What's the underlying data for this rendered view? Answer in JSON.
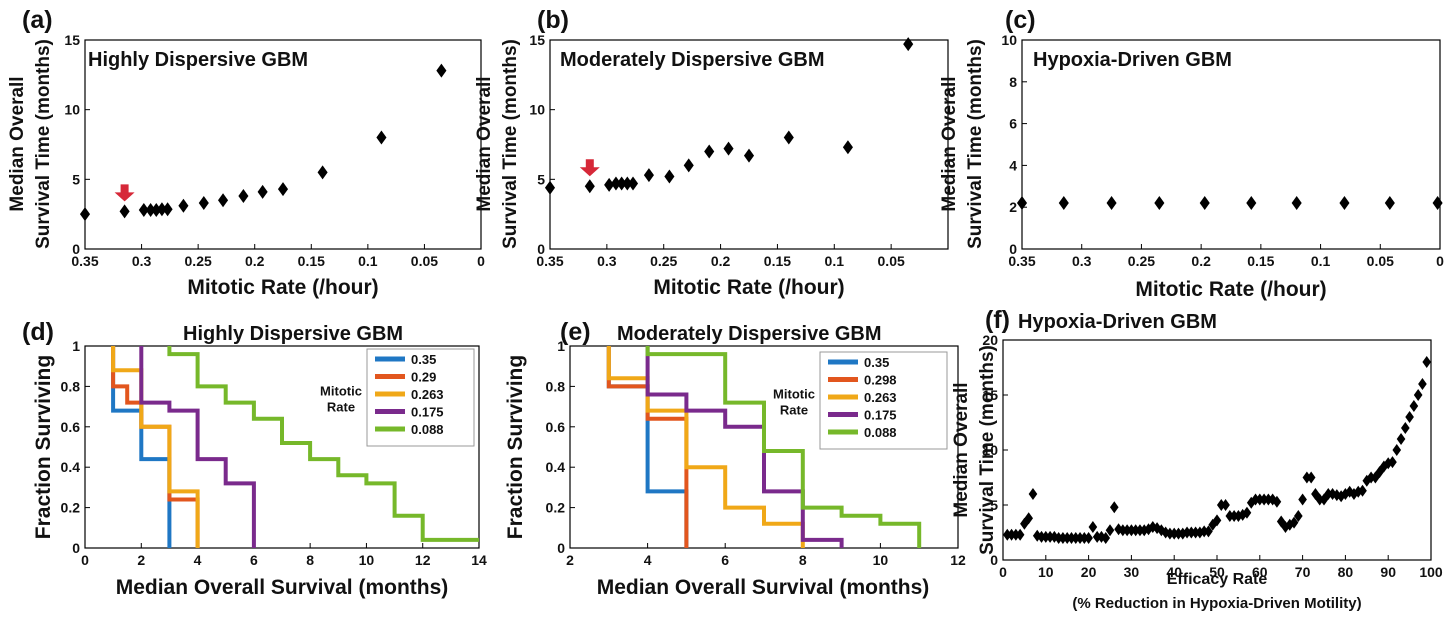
{
  "chart_data": [
    {
      "id": "a",
      "type": "scatter",
      "panel_label": "(a)",
      "title": "Highly Dispersive GBM",
      "xlabel": "Mitotic Rate (/hour)",
      "ylabel": [
        "Median Overall",
        "Survival Time (months)"
      ],
      "xlim": [
        0.35,
        0
      ],
      "ylim": [
        0,
        15
      ],
      "x_ticks": [
        0.35,
        0.3,
        0.25,
        0.2,
        0.15,
        0.1,
        0.05,
        0
      ],
      "y_ticks": [
        0,
        5,
        10,
        15
      ],
      "x_tick_labels": [
        "0.35",
        "0.3",
        "0.25",
        "0.2",
        "0.15",
        "0.1",
        "0.05",
        "0"
      ],
      "y_tick_labels": [
        "0",
        "5",
        "10",
        "15"
      ],
      "marker": "diamond",
      "marker_color": "#000000",
      "x": [
        0.35,
        0.315,
        0.298,
        0.292,
        0.287,
        0.282,
        0.277,
        0.263,
        0.245,
        0.228,
        0.21,
        0.193,
        0.175,
        0.14,
        0.088,
        0.035
      ],
      "y": [
        2.5,
        2.7,
        2.8,
        2.8,
        2.8,
        2.85,
        2.85,
        3.1,
        3.3,
        3.5,
        3.8,
        4.1,
        4.3,
        5.5,
        8.0,
        12.8
      ],
      "annotation": {
        "type": "arrow",
        "x": 0.315,
        "y": 2.7,
        "color": "#d62838"
      },
      "grid": false
    },
    {
      "id": "b",
      "type": "scatter",
      "panel_label": "(b)",
      "title": "Moderately Dispersive GBM",
      "xlabel": "Mitotic Rate (/hour)",
      "ylabel": [
        "Median Overall",
        "Survival Time (months)"
      ],
      "xlim": [
        0.35,
        0
      ],
      "ylim": [
        0,
        15
      ],
      "x_ticks": [
        0.35,
        0.3,
        0.25,
        0.2,
        0.15,
        0.1,
        0.05
      ],
      "y_ticks": [
        0,
        5,
        10,
        15
      ],
      "x_tick_labels": [
        "0.35",
        "0.3",
        "0.25",
        "0.2",
        "0.15",
        "0.1",
        "0.05"
      ],
      "y_tick_labels": [
        "0",
        "5",
        "10",
        "15"
      ],
      "marker": "diamond",
      "marker_color": "#000000",
      "x": [
        0.35,
        0.315,
        0.298,
        0.292,
        0.287,
        0.282,
        0.277,
        0.263,
        0.245,
        0.228,
        0.21,
        0.193,
        0.175,
        0.14,
        0.088,
        0.035
      ],
      "y": [
        4.4,
        4.5,
        4.6,
        4.7,
        4.7,
        4.7,
        4.7,
        5.3,
        5.2,
        6.0,
        7.0,
        7.2,
        6.7,
        8.0,
        7.3,
        14.7
      ],
      "annotation": {
        "type": "arrow",
        "x": 0.315,
        "y": 4.5,
        "color": "#d62838"
      },
      "grid": false
    },
    {
      "id": "c",
      "type": "scatter",
      "panel_label": "(c)",
      "title": "Hypoxia-Driven GBM",
      "xlabel": "Mitotic Rate (/hour)",
      "ylabel": [
        "Median Overall",
        "Survival Time (months)"
      ],
      "xlim": [
        0.35,
        0
      ],
      "ylim": [
        0,
        10
      ],
      "x_ticks": [
        0.35,
        0.3,
        0.25,
        0.2,
        0.15,
        0.1,
        0.05,
        0
      ],
      "y_ticks": [
        0,
        2,
        4,
        6,
        8,
        10
      ],
      "x_tick_labels": [
        "0.35",
        "0.3",
        "0.25",
        "0.2",
        "0.15",
        "0.1",
        "0.05",
        "0"
      ],
      "y_tick_labels": [
        "0",
        "2",
        "4",
        "6",
        "8",
        "10"
      ],
      "marker": "diamond",
      "marker_color": "#000000",
      "x": [
        0.35,
        0.315,
        0.275,
        0.235,
        0.197,
        0.158,
        0.12,
        0.08,
        0.042,
        0.002
      ],
      "y": [
        2.2,
        2.2,
        2.2,
        2.2,
        2.2,
        2.2,
        2.2,
        2.2,
        2.2,
        2.2
      ],
      "grid": false
    },
    {
      "id": "d",
      "type": "line",
      "subtype": "step",
      "panel_label": "(d)",
      "title": "Highly Dispersive GBM",
      "xlabel": "Median Overall Survival (months)",
      "ylabel": "Fraction Surviving",
      "xlim": [
        0,
        14
      ],
      "ylim": [
        0,
        1
      ],
      "x_ticks": [
        0,
        2,
        4,
        6,
        8,
        10,
        12,
        14
      ],
      "y_ticks": [
        0,
        0.2,
        0.4,
        0.6,
        0.8,
        1
      ],
      "x_tick_labels": [
        "0",
        "2",
        "4",
        "6",
        "8",
        "10",
        "12",
        "14"
      ],
      "y_tick_labels": [
        "0",
        "0.2",
        "0.4",
        "0.6",
        "0.8",
        "1"
      ],
      "legend": {
        "title": [
          "Mitotic",
          "Rate"
        ],
        "placement": "top-right"
      },
      "series": [
        {
          "name": "0.35",
          "color": "#1f77c4",
          "x": [
            1,
            1,
            2,
            2,
            3,
            3
          ],
          "y": [
            1,
            0.68,
            0.68,
            0.44,
            0.44,
            0
          ]
        },
        {
          "name": "0.29",
          "color": "#e2561e",
          "x": [
            1,
            1,
            1.5,
            1.5,
            2,
            2,
            3,
            3,
            4,
            4
          ],
          "y": [
            1,
            0.8,
            0.8,
            0.72,
            0.72,
            0.6,
            0.6,
            0.24,
            0.24,
            0
          ]
        },
        {
          "name": "0.263",
          "color": "#f0a818",
          "x": [
            1,
            1,
            2,
            2,
            3,
            3,
            4,
            4
          ],
          "y": [
            1,
            0.88,
            0.88,
            0.6,
            0.6,
            0.28,
            0.28,
            0
          ]
        },
        {
          "name": "0.175",
          "color": "#7a2a8c",
          "x": [
            2,
            2,
            3,
            3,
            4,
            4,
            5,
            5,
            6,
            6
          ],
          "y": [
            1,
            0.72,
            0.72,
            0.68,
            0.68,
            0.44,
            0.44,
            0.32,
            0.32,
            0
          ]
        },
        {
          "name": "0.088",
          "color": "#76b82a",
          "x": [
            3,
            3,
            4,
            4,
            5,
            5,
            6,
            6,
            7,
            7,
            8,
            8,
            9,
            9,
            10,
            10,
            11,
            11,
            12,
            12,
            14
          ],
          "y": [
            1,
            0.96,
            0.96,
            0.8,
            0.8,
            0.72,
            0.72,
            0.64,
            0.64,
            0.52,
            0.52,
            0.44,
            0.44,
            0.36,
            0.36,
            0.32,
            0.32,
            0.16,
            0.16,
            0.04,
            0.04
          ]
        }
      ]
    },
    {
      "id": "e",
      "type": "line",
      "subtype": "step",
      "panel_label": "(e)",
      "title": "Moderately Dispersive GBM",
      "xlabel": "Median Overall Survival (months)",
      "ylabel": "Fraction Surviving",
      "xlim": [
        2,
        12
      ],
      "ylim": [
        0,
        1
      ],
      "x_ticks": [
        2,
        4,
        6,
        8,
        10,
        12
      ],
      "y_ticks": [
        0,
        0.2,
        0.4,
        0.6,
        0.8,
        1
      ],
      "x_tick_labels": [
        "2",
        "4",
        "6",
        "8",
        "10",
        "12"
      ],
      "y_tick_labels": [
        "0",
        "0.2",
        "0.4",
        "0.6",
        "0.8",
        "1"
      ],
      "legend": {
        "title": [
          "Mitotic",
          "Rate"
        ],
        "placement": "top-right"
      },
      "series": [
        {
          "name": "0.35",
          "color": "#1f77c4",
          "x": [
            3,
            3,
            4,
            4,
            5,
            5
          ],
          "y": [
            1,
            0.8,
            0.8,
            0.28,
            0.28,
            0
          ]
        },
        {
          "name": "0.298",
          "color": "#e2561e",
          "x": [
            3,
            3,
            4,
            4,
            5,
            5
          ],
          "y": [
            1,
            0.8,
            0.8,
            0.64,
            0.64,
            0
          ]
        },
        {
          "name": "0.263",
          "color": "#f0a818",
          "x": [
            3,
            3,
            4,
            4,
            5,
            5,
            6,
            6,
            7,
            7,
            8,
            8
          ],
          "y": [
            1,
            0.84,
            0.84,
            0.68,
            0.68,
            0.4,
            0.4,
            0.2,
            0.2,
            0.12,
            0.12,
            0
          ]
        },
        {
          "name": "0.175",
          "color": "#7a2a8c",
          "x": [
            4,
            4,
            5,
            5,
            6,
            6,
            7,
            7,
            8,
            8,
            9,
            9
          ],
          "y": [
            1,
            0.76,
            0.76,
            0.68,
            0.68,
            0.6,
            0.6,
            0.28,
            0.28,
            0.04,
            0.04,
            0
          ]
        },
        {
          "name": "0.088",
          "color": "#76b82a",
          "x": [
            4,
            4,
            6,
            6,
            7,
            7,
            8,
            8,
            9,
            9,
            10,
            10,
            11,
            11
          ],
          "y": [
            1,
            0.96,
            0.96,
            0.72,
            0.72,
            0.48,
            0.48,
            0.2,
            0.2,
            0.16,
            0.16,
            0.12,
            0.12,
            0
          ]
        }
      ]
    },
    {
      "id": "f",
      "type": "scatter",
      "panel_label": "(f)",
      "title": "Hypoxia-Driven GBM",
      "xlabel": [
        "Efficacy Rate",
        "(% Reduction in Hypoxia-Driven Motility)"
      ],
      "ylabel": [
        "Median Overall",
        "Survival Time (months)"
      ],
      "xlim": [
        0,
        100
      ],
      "ylim": [
        0,
        20
      ],
      "x_ticks": [
        0,
        10,
        20,
        30,
        40,
        50,
        60,
        70,
        80,
        90,
        100
      ],
      "y_ticks": [
        0,
        5,
        10,
        15,
        20
      ],
      "x_tick_labels": [
        "0",
        "10",
        "20",
        "30",
        "40",
        "50",
        "60",
        "70",
        "80",
        "90",
        "100"
      ],
      "y_tick_labels": [
        "0",
        "5",
        "10",
        "15",
        "20"
      ],
      "marker": "diamond",
      "marker_color": "#000000",
      "x": [
        1,
        2,
        3,
        4,
        5,
        6,
        7,
        8,
        9,
        10,
        11,
        12,
        13,
        14,
        15,
        16,
        17,
        18,
        19,
        20,
        21,
        22,
        23,
        24,
        25,
        26,
        27,
        28,
        29,
        30,
        31,
        32,
        33,
        34,
        35,
        36,
        37,
        38,
        39,
        40,
        41,
        42,
        43,
        44,
        45,
        46,
        47,
        48,
        49,
        50,
        51,
        52,
        53,
        54,
        55,
        56,
        57,
        58,
        59,
        60,
        61,
        62,
        63,
        64,
        65,
        66,
        67,
        68,
        69,
        70,
        71,
        72,
        73,
        74,
        75,
        76,
        77,
        78,
        79,
        80,
        81,
        82,
        83,
        84,
        85,
        86,
        87,
        88,
        89,
        90,
        91,
        92,
        93,
        94,
        95,
        96,
        97,
        98,
        99
      ],
      "y": [
        2.3,
        2.3,
        2.3,
        2.3,
        3.3,
        3.8,
        6.0,
        2.2,
        2.1,
        2.1,
        2.1,
        2.1,
        2.0,
        2.0,
        2.0,
        2.0,
        2.0,
        2.0,
        2.0,
        2.0,
        3.0,
        2.1,
        2.1,
        2.0,
        2.7,
        4.8,
        2.8,
        2.7,
        2.7,
        2.7,
        2.7,
        2.7,
        2.7,
        2.8,
        3.0,
        2.9,
        2.7,
        2.5,
        2.4,
        2.4,
        2.4,
        2.4,
        2.5,
        2.5,
        2.5,
        2.5,
        2.6,
        2.6,
        3.2,
        3.6,
        5.0,
        5.0,
        4.0,
        4.0,
        4.0,
        4.1,
        4.3,
        5.2,
        5.5,
        5.5,
        5.5,
        5.5,
        5.5,
        5.3,
        3.5,
        3.0,
        3.2,
        3.4,
        4.0,
        5.5,
        7.5,
        7.5,
        6.0,
        5.5,
        5.5,
        6.0,
        6.0,
        5.9,
        5.8,
        6.0,
        6.2,
        6.0,
        6.2,
        6.3,
        7.2,
        7.5,
        7.5,
        8.0,
        8.5,
        8.8,
        8.9,
        10.0,
        11.0,
        12.0,
        13.0,
        14.0,
        15.0,
        16.0,
        18.0
      ],
      "grid": false
    }
  ]
}
